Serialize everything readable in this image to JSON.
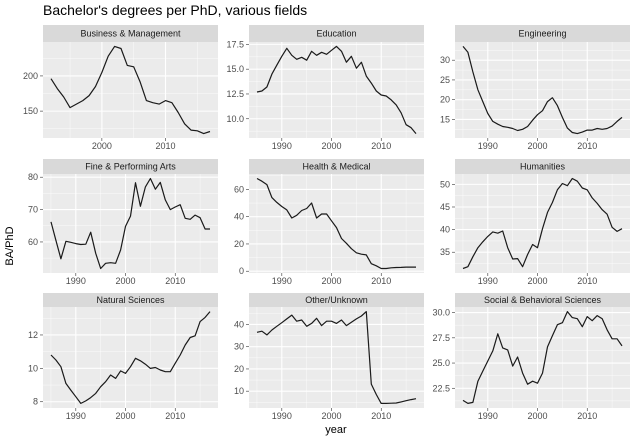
{
  "chart_data": {
    "type": "line",
    "title": "Bachelor's degrees per PhD, various fields",
    "xlabel": "year",
    "ylabel": "BA/PhD",
    "grid": true,
    "facet_scales": "free",
    "colors": {
      "panel_bg": "#EBEBEB",
      "strip_bg": "#D9D9D9",
      "grid": "#FFFFFF",
      "line": "#1a1a1a"
    },
    "facets": [
      {
        "name": "Business & Management",
        "x_start": 1992,
        "x_ticks": [
          1990,
          2000,
          2010
        ],
        "y_ticks": [
          150,
          200
        ],
        "values": [
          196,
          182,
          170,
          155,
          160,
          165,
          172,
          185,
          205,
          228,
          242,
          239,
          215,
          213,
          192,
          165,
          162,
          160,
          165,
          162,
          148,
          132,
          123,
          122,
          118,
          121
        ]
      },
      {
        "name": "Education",
        "x_start": 1985,
        "x_ticks": [
          1990,
          2000,
          2010
        ],
        "y_ticks": [
          10.0,
          12.5,
          15.0,
          17.5
        ],
        "y_tick_labels": [
          "10.0",
          "12.5",
          "15.0",
          "17.5"
        ],
        "values": [
          12.7,
          12.8,
          13.2,
          14.5,
          15.4,
          16.3,
          17.1,
          16.4,
          16.0,
          16.2,
          15.9,
          16.8,
          16.4,
          16.7,
          16.5,
          16.9,
          17.3,
          16.8,
          15.7,
          16.3,
          15.1,
          15.7,
          14.3,
          13.6,
          12.8,
          12.4,
          12.3,
          11.9,
          11.4,
          10.6,
          9.4,
          9.1,
          8.5
        ]
      },
      {
        "name": "Engineering",
        "x_start": 1985,
        "x_ticks": [
          1990,
          2000,
          2010
        ],
        "y_ticks": [
          15,
          20,
          25,
          30
        ],
        "values": [
          33.5,
          32,
          27,
          22.5,
          19.5,
          16.5,
          14.5,
          13.8,
          13.2,
          13,
          12.7,
          12.2,
          12.5,
          13.2,
          14.8,
          16.2,
          17.2,
          19.5,
          20.5,
          18.5,
          15.5,
          12.8,
          11.7,
          11.4,
          11.8,
          12.3,
          12.3,
          12.7,
          12.5,
          12.7,
          13.3,
          14.5,
          15.5
        ]
      },
      {
        "name": "Fine & Performing Arts",
        "x_start": 1985,
        "x_ticks": [
          1990,
          2000,
          2010
        ],
        "y_ticks": [
          60,
          70,
          80
        ],
        "values": [
          66.2,
          60.5,
          54.8,
          60.2,
          59.9,
          59.5,
          59.2,
          59.3,
          63,
          56.5,
          51.8,
          53.4,
          53.6,
          53.4,
          57.5,
          64.8,
          68,
          78.3,
          71,
          77,
          79.6,
          76.3,
          78.4,
          73,
          70,
          70.8,
          71.5,
          67.3,
          67,
          68.3,
          67.5,
          64,
          64
        ]
      },
      {
        "name": "Health & Medical",
        "x_start": 1985,
        "x_ticks": [
          1990,
          2000,
          2010
        ],
        "y_ticks": [
          0,
          20,
          40,
          60
        ],
        "values": [
          68,
          66,
          63.5,
          54,
          50.5,
          47.5,
          45,
          39,
          41,
          44.5,
          46,
          50,
          39,
          42,
          42,
          37,
          32,
          24,
          20.5,
          16.5,
          13.5,
          12.5,
          12,
          5.5,
          4,
          2,
          2,
          2.5,
          2.7,
          2.8,
          3,
          3,
          3
        ]
      },
      {
        "name": "Humanities",
        "x_start": 1985,
        "x_ticks": [
          1990,
          2000,
          2010
        ],
        "y_ticks": [
          35,
          40,
          45,
          50
        ],
        "values": [
          31.4,
          31.8,
          34,
          36,
          37.3,
          38.5,
          39.5,
          39.2,
          39.7,
          36,
          33.5,
          33.6,
          31.8,
          34.5,
          36.7,
          36,
          40.2,
          43.8,
          46,
          48.8,
          50.2,
          49.7,
          51.3,
          50.7,
          49.2,
          48.8,
          47,
          45.8,
          44.4,
          43.4,
          40.5,
          39.6,
          40.2
        ]
      },
      {
        "name": "Natural Sciences",
        "x_start": 1985,
        "x_ticks": [
          1990,
          2000,
          2010
        ],
        "y_ticks": [
          8,
          10,
          12
        ],
        "values": [
          10.8,
          10.5,
          10.1,
          9.1,
          8.7,
          8.3,
          7.9,
          8.05,
          8.25,
          8.5,
          8.9,
          9.2,
          9.6,
          9.4,
          9.85,
          9.7,
          10.1,
          10.6,
          10.45,
          10.25,
          10.0,
          10.05,
          9.9,
          9.8,
          9.8,
          10.3,
          10.8,
          11.4,
          11.85,
          11.95,
          12.8,
          13.05,
          13.4
        ]
      },
      {
        "name": "Other/Unknown",
        "x_start": 1985,
        "x_ticks": [
          1990,
          2000,
          2010
        ],
        "y_ticks": [
          10,
          20,
          30,
          40
        ],
        "values": [
          36.5,
          37,
          35.3,
          37.5,
          39.2,
          40.8,
          42.5,
          44.2,
          41.5,
          42,
          39.2,
          40.5,
          42.8,
          39.5,
          41.5,
          41.5,
          40.5,
          42,
          39.5,
          41,
          42.5,
          43.8,
          45.8,
          13.2,
          8.5,
          4.5,
          4.5,
          4.6,
          4.7,
          5.2,
          5.7,
          6.2,
          6.6
        ]
      },
      {
        "name": "Social & Behavioral Sciences",
        "x_start": 1985,
        "x_ticks": [
          1990,
          2000,
          2010
        ],
        "y_ticks": [
          22.5,
          25.0,
          27.5,
          30.0
        ],
        "y_tick_labels": [
          "22.5",
          "25.0",
          "27.5",
          "30.0"
        ],
        "values": [
          21.3,
          21,
          21.1,
          23.2,
          24.2,
          25.2,
          26.2,
          27.9,
          26.5,
          26.3,
          24.7,
          25.6,
          24,
          22.9,
          23.2,
          23,
          24,
          26.6,
          27.7,
          28.8,
          29,
          30.1,
          29.5,
          29.4,
          28.6,
          29.6,
          29.2,
          29.7,
          29.4,
          28.3,
          27.4,
          27.4,
          26.7
        ]
      }
    ]
  }
}
